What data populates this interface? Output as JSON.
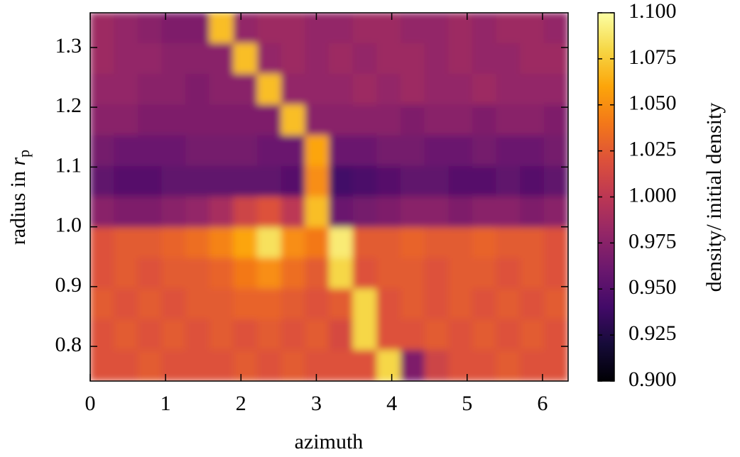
{
  "chart_data": {
    "type": "heatmap",
    "x_label": "azimuth",
    "y_label": [
      "radius in",
      "r",
      "p"
    ],
    "colorbar_label": "density/ initial density",
    "colormap": "inferno",
    "xlim": [
      0,
      6.34
    ],
    "xticks": [
      0,
      1,
      2,
      3,
      4,
      5,
      6
    ],
    "ylim": [
      0.742,
      1.358
    ],
    "yticks": [
      0.8,
      0.9,
      {
        "value": 1,
        "label": "1.0"
      },
      1.1,
      1.2,
      1.3
    ],
    "zlim": [
      0.9,
      1.1
    ],
    "zticks": [
      {
        "value": 0.9,
        "label": "0.900"
      },
      {
        "value": 0.925,
        "label": "0.925"
      },
      {
        "value": 0.95,
        "label": "0.950"
      },
      {
        "value": 0.975,
        "label": "0.975"
      },
      {
        "value": 1,
        "label": "1.000"
      },
      {
        "value": 1.025,
        "label": "1.025"
      },
      {
        "value": 1.05,
        "label": "1.050"
      },
      {
        "value": 1.075,
        "label": "1.075"
      },
      {
        "value": 1.1,
        "label": "1.100"
      }
    ],
    "z": [
      [
        0.985,
        0.98,
        0.975,
        0.97,
        0.97,
        1.07,
        0.98,
        0.985,
        0.985,
        0.98,
        0.98,
        0.985,
        0.985,
        0.98,
        0.98,
        0.985,
        0.98,
        0.985,
        0.985,
        0.98
      ],
      [
        0.985,
        0.98,
        0.98,
        0.975,
        0.975,
        0.975,
        1.07,
        0.98,
        0.985,
        0.98,
        0.985,
        0.98,
        0.985,
        0.985,
        0.98,
        0.985,
        0.98,
        0.98,
        0.985,
        0.985
      ],
      [
        0.98,
        0.98,
        0.975,
        0.975,
        0.97,
        0.975,
        0.975,
        1.07,
        0.98,
        0.98,
        0.98,
        0.985,
        0.98,
        0.985,
        0.98,
        0.98,
        0.985,
        0.98,
        0.98,
        0.98
      ],
      [
        0.975,
        0.975,
        0.97,
        0.97,
        0.97,
        0.97,
        0.97,
        0.97,
        1.07,
        0.975,
        0.975,
        0.975,
        0.975,
        0.97,
        0.975,
        0.975,
        0.97,
        0.975,
        0.975,
        0.97
      ],
      [
        0.965,
        0.96,
        0.96,
        0.96,
        0.965,
        0.965,
        0.965,
        0.96,
        0.96,
        1.06,
        0.96,
        0.96,
        0.965,
        0.965,
        0.96,
        0.96,
        0.965,
        0.96,
        0.96,
        0.965
      ],
      [
        0.955,
        0.95,
        0.95,
        0.955,
        0.955,
        0.955,
        0.955,
        0.955,
        0.95,
        1.05,
        0.94,
        0.945,
        0.95,
        0.955,
        0.955,
        0.95,
        0.95,
        0.955,
        0.95,
        0.955
      ],
      [
        0.975,
        0.97,
        0.97,
        0.975,
        0.98,
        0.99,
        1.01,
        1.02,
        1.0,
        1.07,
        0.96,
        0.965,
        0.97,
        0.975,
        0.975,
        0.97,
        0.975,
        0.975,
        0.97,
        0.975
      ],
      [
        1.02,
        1.025,
        1.025,
        1.03,
        1.035,
        1.045,
        1.06,
        1.085,
        1.05,
        1.04,
        1.09,
        1.025,
        1.025,
        1.03,
        1.025,
        1.025,
        1.03,
        1.025,
        1.025,
        1.02
      ],
      [
        1.02,
        1.025,
        1.02,
        1.025,
        1.025,
        1.03,
        1.04,
        1.05,
        1.035,
        1.025,
        1.08,
        1.02,
        1.025,
        1.025,
        1.02,
        1.025,
        1.025,
        1.02,
        1.025,
        1.02
      ],
      [
        1.025,
        1.02,
        1.025,
        1.02,
        1.025,
        1.025,
        1.03,
        1.03,
        1.025,
        1.02,
        1.025,
        1.08,
        1.02,
        1.025,
        1.02,
        1.025,
        1.02,
        1.025,
        1.02,
        1.025
      ],
      [
        1.02,
        1.025,
        1.02,
        1.025,
        1.02,
        1.025,
        1.02,
        1.025,
        1.02,
        1.025,
        1.015,
        1.08,
        1.02,
        1.02,
        1.025,
        1.02,
        1.025,
        1.02,
        1.025,
        1.02
      ],
      [
        1.02,
        1.02,
        1.025,
        1.02,
        1.02,
        1.02,
        1.025,
        1.02,
        1.025,
        1.02,
        1.02,
        1.02,
        1.08,
        0.97,
        1.01,
        1.02,
        1.02,
        1.025,
        1.02,
        1.02
      ]
    ]
  }
}
